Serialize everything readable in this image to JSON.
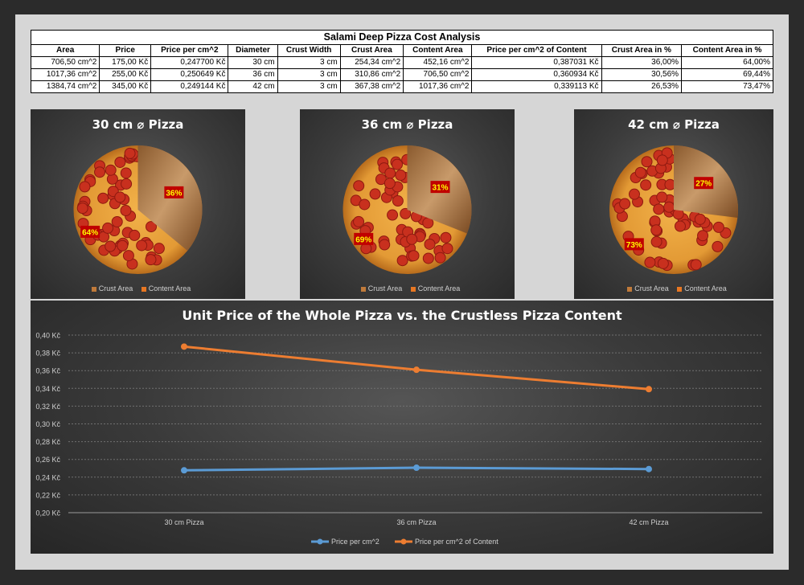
{
  "table": {
    "title": "Salami Deep Pizza Cost Analysis",
    "headers": [
      "Area",
      "Price",
      "Price per cm^2",
      "Diameter",
      "Crust Width",
      "Crust Area",
      "Content Area",
      "Price per cm^2 of Content",
      "Crust Area in %",
      "Content Area in %"
    ],
    "rows": [
      [
        "706,50 cm^2",
        "175,00 Kč",
        "0,247700 Kč",
        "30 cm",
        "3 cm",
        "254,34 cm^2",
        "452,16 cm^2",
        "0,387031 Kč",
        "36,00%",
        "64,00%"
      ],
      [
        "1017,36 cm^2",
        "255,00 Kč",
        "0,250649 Kč",
        "36 cm",
        "3 cm",
        "310,86 cm^2",
        "706,50 cm^2",
        "0,360934 Kč",
        "30,56%",
        "69,44%"
      ],
      [
        "1384,74 cm^2",
        "345,00 Kč",
        "0,249144 Kč",
        "42 cm",
        "3 cm",
        "367,38 cm^2",
        "1017,36 cm^2",
        "0,339113 Kč",
        "26,53%",
        "73,47%"
      ]
    ]
  },
  "colors": {
    "crust": "#c07a3a",
    "content": "#e87722",
    "label_bg": "#c00000",
    "label_text": "#ffff00",
    "line_price": "#5b9bd5",
    "line_content": "#ed7d31"
  },
  "chart_data": [
    {
      "type": "pie",
      "title": "30 cm ⌀ Pizza",
      "categories": [
        "Crust Area",
        "Content Area"
      ],
      "values": [
        36,
        64
      ],
      "labels": [
        "36%",
        "64%"
      ],
      "legend": "bottom"
    },
    {
      "type": "pie",
      "title": "36 cm ⌀ Pizza",
      "categories": [
        "Crust Area",
        "Content Area"
      ],
      "values": [
        31,
        69
      ],
      "labels": [
        "31%",
        "69%"
      ],
      "legend": "bottom"
    },
    {
      "type": "pie",
      "title": "42 cm ⌀ Pizza",
      "categories": [
        "Crust Area",
        "Content Area"
      ],
      "values": [
        27,
        73
      ],
      "labels": [
        "27%",
        "73%"
      ],
      "legend": "bottom"
    },
    {
      "type": "line",
      "title": "Unit Price of the Whole Pizza vs. the Crustless Pizza Content",
      "categories": [
        "30 cm Pizza",
        "36 cm Pizza",
        "42 cm Pizza"
      ],
      "series": [
        {
          "name": "Price per cm^2",
          "values": [
            0.2477,
            0.250649,
            0.249144
          ]
        },
        {
          "name": "Price per cm^2 of Content",
          "values": [
            0.387031,
            0.360934,
            0.339113
          ]
        }
      ],
      "ylim": [
        0.2,
        0.4
      ],
      "yticks": [
        "0,20 Kč",
        "0,22 Kč",
        "0,24 Kč",
        "0,26 Kč",
        "0,28 Kč",
        "0,30 Kč",
        "0,32 Kč",
        "0,34 Kč",
        "0,36 Kč",
        "0,38 Kč",
        "0,40 Kč"
      ],
      "grid": true,
      "legend": "bottom"
    }
  ]
}
